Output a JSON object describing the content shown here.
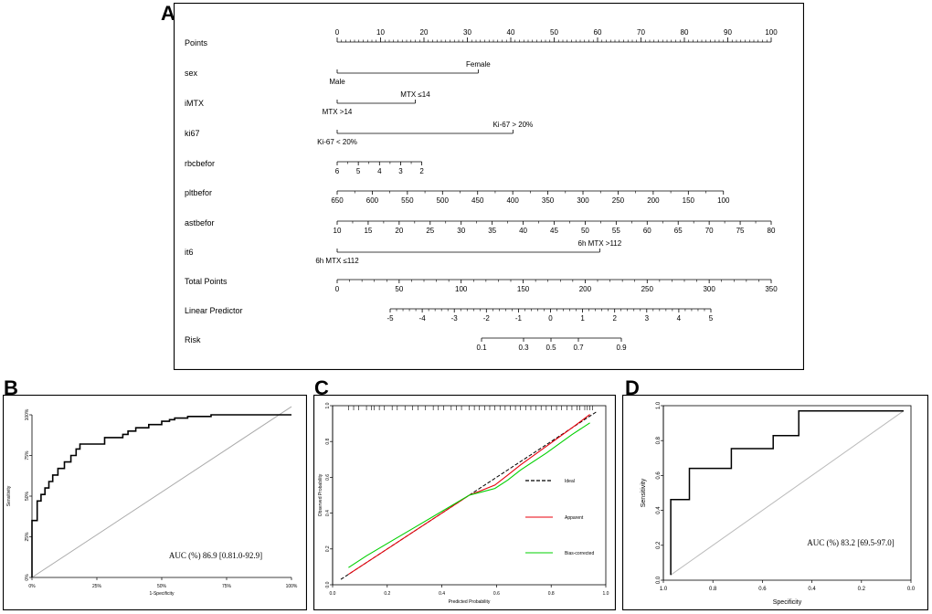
{
  "panels": {
    "a": {
      "letter": "A"
    },
    "b": {
      "letter": "B"
    },
    "c": {
      "letter": "C"
    },
    "d": {
      "letter": "D"
    }
  },
  "chart_data": [
    {
      "panel": "A",
      "type": "nomogram",
      "scales": [
        {
          "label": "Points",
          "ticks": [
            "0",
            "10",
            "20",
            "30",
            "40",
            "50",
            "60",
            "70",
            "80",
            "90",
            "100"
          ],
          "minor": true
        },
        {
          "label": "sex",
          "options": [
            {
              "text": "Female",
              "pos": "above"
            },
            {
              "text": "Male",
              "pos": "below"
            }
          ],
          "points": [
            0,
            32.5
          ]
        },
        {
          "label": "iMTX",
          "options": [
            {
              "text": "MTX ≤14",
              "pos": "above"
            },
            {
              "text": "MTX >14",
              "pos": "below"
            }
          ],
          "points": [
            0,
            18
          ]
        },
        {
          "label": "ki67",
          "options": [
            {
              "text": "Ki-67 > 20%",
              "pos": "above"
            },
            {
              "text": "Ki-67 < 20%",
              "pos": "below"
            }
          ],
          "points": [
            0,
            40.5
          ]
        },
        {
          "label": "rbcbefor",
          "ticks": [
            "6",
            "5",
            "4",
            "3",
            "2"
          ],
          "points": [
            0,
            19.5
          ]
        },
        {
          "label": "pltbefor",
          "ticks": [
            "650",
            "600",
            "550",
            "500",
            "450",
            "400",
            "350",
            "300",
            "250",
            "200",
            "150",
            "100"
          ],
          "points": [
            0,
            89
          ]
        },
        {
          "label": "astbefor",
          "ticks": [
            "10",
            "15",
            "20",
            "25",
            "30",
            "35",
            "40",
            "45",
            "50",
            "55",
            "60",
            "65",
            "70",
            "75",
            "80"
          ],
          "points": [
            0,
            100
          ]
        },
        {
          "label": "it6",
          "options": [
            {
              "text": "6h MTX >112",
              "pos": "above"
            },
            {
              "text": "6h MTX ≤112",
              "pos": "below"
            }
          ],
          "points": [
            0,
            60.5
          ]
        },
        {
          "label": "Total Points",
          "ticks": [
            "0",
            "50",
            "100",
            "150",
            "200",
            "250",
            "300",
            "350"
          ],
          "range": [
            0,
            350
          ]
        },
        {
          "label": "Linear Predictor",
          "ticks": [
            "-5",
            "-4",
            "-3",
            "-2",
            "-1",
            "0",
            "1",
            "2",
            "3",
            "4",
            "5"
          ]
        },
        {
          "label": "Risk",
          "ticks": [
            "0.1",
            "0.3",
            "0.5",
            "0.7",
            "0.9"
          ]
        }
      ]
    },
    {
      "panel": "B",
      "type": "line",
      "title": "",
      "xlabel": "1-Specificity",
      "ylabel": "Sensitivity",
      "x_ticks": [
        "0%",
        "25%",
        "50%",
        "75%",
        "100%"
      ],
      "y_ticks": [
        "0%",
        "25%",
        "50%",
        "75%",
        "100%"
      ],
      "xlim": [
        0,
        1
      ],
      "ylim": [
        0,
        1
      ],
      "annotation": "AUC (%)  86.9 [0.81.0-92.9]",
      "series": [
        {
          "name": "ROC",
          "x": [
            0,
            0,
            0.02,
            0.02,
            0.035,
            0.035,
            0.05,
            0.05,
            0.065,
            0.065,
            0.08,
            0.08,
            0.1,
            0.1,
            0.125,
            0.125,
            0.15,
            0.15,
            0.17,
            0.17,
            0.185,
            0.185,
            0.21,
            0.21,
            0.28,
            0.28,
            0.35,
            0.35,
            0.37,
            0.37,
            0.4,
            0.4,
            0.42,
            0.42,
            0.45,
            0.45,
            0.5,
            0.5,
            0.53,
            0.53,
            0.55,
            0.55,
            0.575,
            0.575,
            0.6,
            0.6,
            0.69,
            0.69,
            1.0
          ],
          "y": [
            0,
            0.35,
            0.35,
            0.47,
            0.47,
            0.51,
            0.51,
            0.55,
            0.55,
            0.59,
            0.59,
            0.63,
            0.63,
            0.67,
            0.67,
            0.71,
            0.71,
            0.75,
            0.75,
            0.79,
            0.79,
            0.82,
            0.82,
            0.82,
            0.82,
            0.86,
            0.86,
            0.88,
            0.88,
            0.9,
            0.9,
            0.92,
            0.92,
            0.92,
            0.92,
            0.94,
            0.94,
            0.96,
            0.96,
            0.97,
            0.97,
            0.98,
            0.98,
            0.98,
            0.98,
            0.99,
            0.99,
            1.0,
            1.0
          ]
        },
        {
          "name": "reference",
          "x": [
            0,
            1
          ],
          "y": [
            0,
            1.05
          ]
        }
      ]
    },
    {
      "panel": "C",
      "type": "line",
      "title": "",
      "xlabel": "Predicted Probability",
      "ylabel": "Observed Probability",
      "x_ticks": [
        "0.0",
        "0.2",
        "0.4",
        "0.6",
        "0.8",
        "1.0"
      ],
      "y_ticks": [
        "0.0",
        "0.2",
        "0.4",
        "0.6",
        "0.8",
        "1.0"
      ],
      "xlim": [
        0,
        1
      ],
      "ylim": [
        0,
        1
      ],
      "rug": [
        0.03,
        0.05,
        0.07,
        0.1,
        0.12,
        0.13,
        0.15,
        0.17,
        0.2,
        0.22,
        0.25,
        0.28,
        0.3,
        0.33,
        0.36,
        0.38,
        0.4,
        0.43,
        0.45,
        0.47,
        0.5,
        0.52,
        0.54,
        0.56,
        0.58,
        0.6,
        0.62,
        0.64,
        0.66,
        0.68,
        0.7,
        0.72,
        0.74,
        0.76,
        0.78,
        0.8,
        0.82,
        0.84,
        0.86,
        0.88,
        0.9,
        0.92,
        0.93,
        0.95,
        0.96,
        0.97,
        0.98
      ],
      "legend": {
        "placement": "right",
        "entries": [
          "Ideal",
          "Apparent",
          "Bias-corrected"
        ]
      },
      "series": [
        {
          "name": "Ideal",
          "color": "#000000",
          "dashed": true,
          "x": [
            0,
            1
          ],
          "y": [
            0,
            1
          ]
        },
        {
          "name": "Apparent",
          "color": "#e8000b",
          "x": [
            0.03,
            0.1,
            0.2,
            0.3,
            0.4,
            0.5,
            0.55,
            0.6,
            0.65,
            0.7,
            0.8,
            0.9,
            0.97
          ],
          "y": [
            0.03,
            0.1,
            0.2,
            0.3,
            0.4,
            0.5,
            0.53,
            0.56,
            0.62,
            0.68,
            0.79,
            0.9,
            0.98
          ]
        },
        {
          "name": "Bias-corrected",
          "color": "#00d000",
          "x": [
            0.03,
            0.1,
            0.2,
            0.3,
            0.4,
            0.5,
            0.55,
            0.6,
            0.65,
            0.7,
            0.8,
            0.9,
            0.97
          ],
          "y": [
            0.07,
            0.14,
            0.23,
            0.32,
            0.41,
            0.5,
            0.52,
            0.54,
            0.59,
            0.65,
            0.75,
            0.86,
            0.93
          ]
        }
      ]
    },
    {
      "panel": "D",
      "type": "line",
      "title": "",
      "xlabel": "Specificity",
      "ylabel": "Sensitivity",
      "x_ticks": [
        "1.0",
        "0.8",
        "0.6",
        "0.4",
        "0.2",
        "0.0"
      ],
      "y_ticks": [
        "0.0",
        "0.2",
        "0.4",
        "0.6",
        "0.8",
        "1.0"
      ],
      "xlim": [
        1,
        0
      ],
      "ylim": [
        0,
        1
      ],
      "annotation": "AUC (%)  83.2 [69.5-97.0]",
      "series": [
        {
          "name": "ROC",
          "x": [
            1.0,
            1.0,
            0.92,
            0.92,
            0.74,
            0.74,
            0.56,
            0.56,
            0.45,
            0.45,
            0.0
          ],
          "y": [
            0,
            0.46,
            0.46,
            0.65,
            0.65,
            0.77,
            0.77,
            0.85,
            0.85,
            1.0,
            1.0
          ]
        },
        {
          "name": "reference",
          "x": [
            1,
            0
          ],
          "y": [
            0,
            1
          ]
        }
      ]
    }
  ]
}
